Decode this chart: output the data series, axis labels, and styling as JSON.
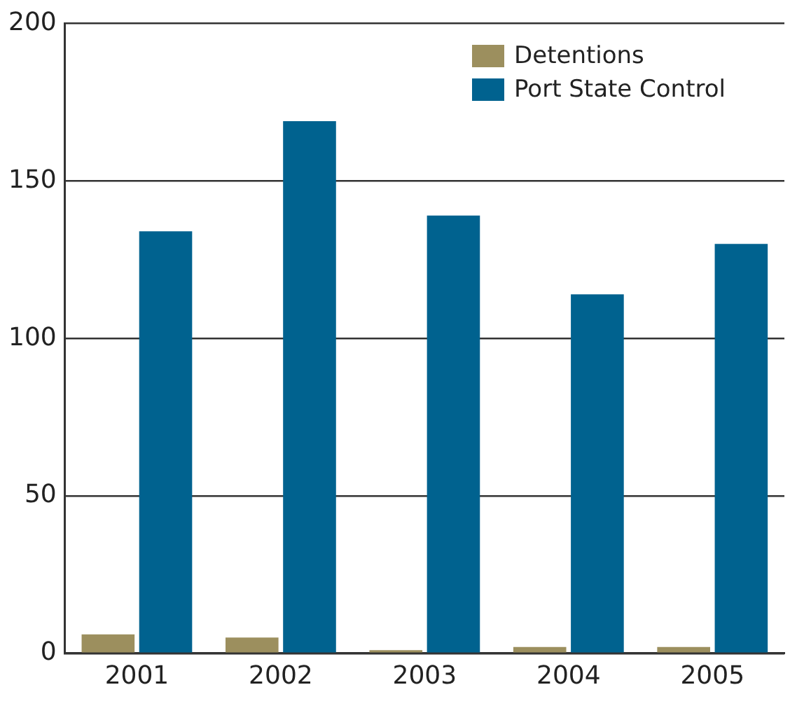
{
  "chart_data": {
    "type": "bar",
    "categories": [
      "2001",
      "2002",
      "2003",
      "2004",
      "2005"
    ],
    "series": [
      {
        "name": "Detentions",
        "color": "#9c8f5e",
        "values": [
          6,
          5,
          1,
          2,
          2
        ]
      },
      {
        "name": "Port State Control",
        "color": "#00628f",
        "values": [
          134,
          169,
          139,
          114,
          130
        ]
      }
    ],
    "ylim": [
      0,
      200
    ],
    "yticks": [
      0,
      50,
      100,
      150,
      200
    ],
    "grid": "y",
    "legend": "top right"
  }
}
